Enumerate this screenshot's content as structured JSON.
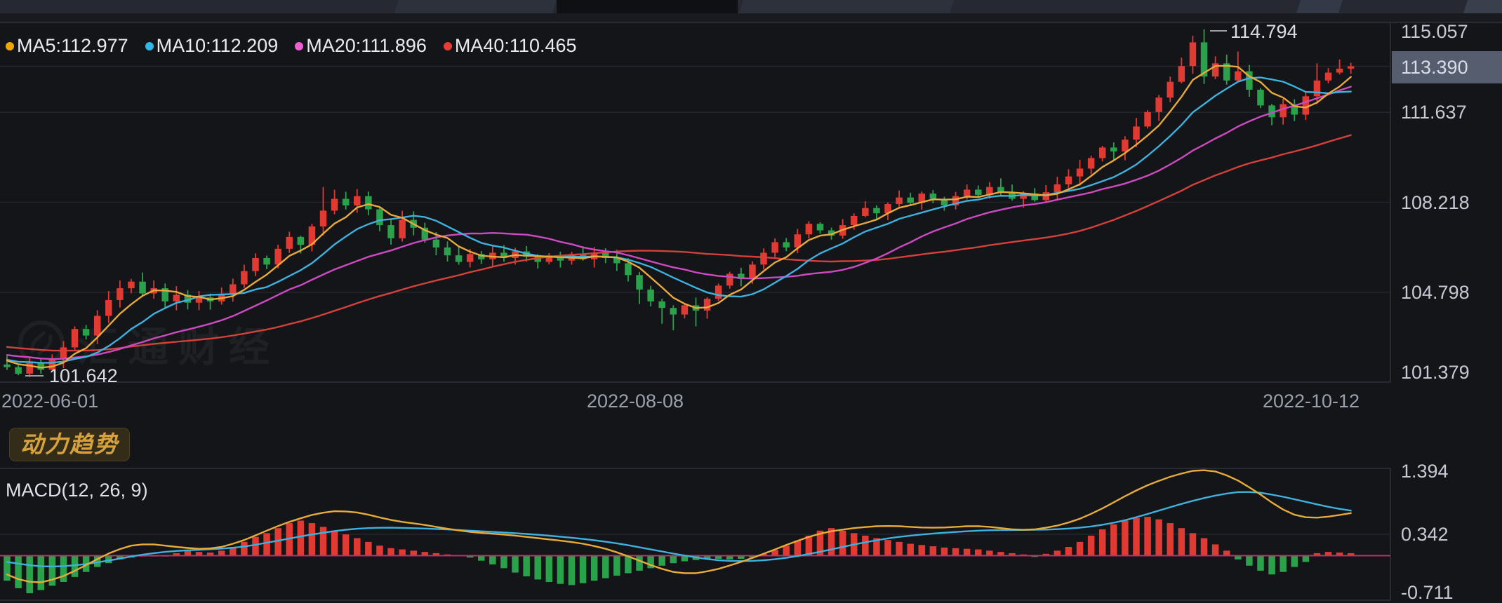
{
  "colors": {
    "background": "#141519",
    "up_candle": "#e03a33",
    "down_candle": "#2aa24b",
    "ma5": "#e7a93b",
    "ma10": "#3eb1de",
    "ma20": "#cd4ac2",
    "ma40": "#d4403a",
    "macd_dif": "#e7ab3a",
    "macd_dea": "#3eb1de",
    "macd_zero_line": "#b5366a",
    "grid": "#23252d",
    "border": "#30333d",
    "tag_background": "#565d6e",
    "badge_text": "#d7a23b",
    "legend_dot_ma5": "#f0a500",
    "legend_dot_ma10": "#2eb8e8",
    "legend_dot_ma20": "#ef5fd2",
    "legend_dot_ma40": "#e83b35"
  },
  "main_chart": {
    "legend": [
      {
        "label": "MA5:112.977",
        "color": "#f0a500"
      },
      {
        "label": "MA10:112.209",
        "color": "#2eb8e8"
      },
      {
        "label": "MA20:111.896",
        "color": "#ef5fd2"
      },
      {
        "label": "MA40:110.465",
        "color": "#e83b35"
      }
    ],
    "current_price_label": "113.390",
    "high_annotation": "114.794",
    "low_annotation": "101.642",
    "x_axis_labels": [
      "2022-06-01",
      "2022-08-08",
      "2022-10-12"
    ]
  },
  "badge": {
    "label": "动力趋势"
  },
  "watermark": {
    "text": "汇通财经"
  },
  "macd_panel": {
    "label": "MACD(12, 26, 9)",
    "y_axis_labels": [
      "1.394",
      "0.342",
      "-0.711"
    ]
  },
  "chart_data": {
    "type": "candlestick+macd",
    "x_dates": {
      "start": "2022-06-01",
      "middle": "2022-08-08",
      "end": "2022-10-12"
    },
    "price_axis": {
      "ticks": [
        115.057,
        113.39,
        111.637,
        108.218,
        104.798,
        101.379
      ],
      "current_price": 113.39,
      "period_high": 114.794,
      "period_low": 101.642
    },
    "ma_legend_values": {
      "MA5": 112.977,
      "MA10": 112.209,
      "MA20": 111.896,
      "MA40": 110.465
    },
    "macd_axis": {
      "ticks": [
        1.394,
        0.342,
        -0.711
      ],
      "params": [
        12,
        26,
        9
      ]
    },
    "closes": [
      101.95,
      101.7,
      102.1,
      101.85,
      102.25,
      102.7,
      103.4,
      103.15,
      103.9,
      104.5,
      104.95,
      105.2,
      104.75,
      104.95,
      104.45,
      104.7,
      104.4,
      104.6,
      104.45,
      104.7,
      105.1,
      105.6,
      106.1,
      105.85,
      106.45,
      106.9,
      106.6,
      107.3,
      107.9,
      108.35,
      108.1,
      108.45,
      107.95,
      107.35,
      106.85,
      107.55,
      107.25,
      106.8,
      106.5,
      106.2,
      105.95,
      106.25,
      106.05,
      106.3,
      106.1,
      106.35,
      106.15,
      105.95,
      106.2,
      106.0,
      106.25,
      106.05,
      106.3,
      106.1,
      105.9,
      105.45,
      104.9,
      104.45,
      104.2,
      103.95,
      104.3,
      104.1,
      104.55,
      105.05,
      105.5,
      105.3,
      105.85,
      106.3,
      106.7,
      106.5,
      107.0,
      107.4,
      107.15,
      106.95,
      107.35,
      107.7,
      108.0,
      107.8,
      108.15,
      108.4,
      108.2,
      108.55,
      108.35,
      108.1,
      108.45,
      108.7,
      108.5,
      108.8,
      108.6,
      108.35,
      108.55,
      108.3,
      108.6,
      108.9,
      109.2,
      109.5,
      109.9,
      110.3,
      110.15,
      110.6,
      111.1,
      111.65,
      112.2,
      112.8,
      113.4,
      114.3,
      113.0,
      113.5,
      112.85,
      113.2,
      112.5,
      111.9,
      111.45,
      111.95,
      111.55,
      112.25,
      112.85,
      113.15,
      113.3,
      113.39
    ],
    "first_open": 102.05,
    "high_overrides": {
      "28": 108.8,
      "31": 108.72,
      "105": 114.55,
      "106": 114.794,
      "109": 113.95,
      "116": 113.5
    },
    "low_overrides": {
      "1": 101.642,
      "3": 101.7,
      "56": 104.35,
      "58": 103.6,
      "59": 103.35,
      "61": 103.5,
      "112": 111.15
    },
    "macd_hist": [
      -0.4,
      -0.52,
      -0.6,
      -0.55,
      -0.48,
      -0.42,
      -0.34,
      -0.26,
      -0.18,
      -0.12,
      -0.06,
      -0.03,
      0.0,
      0.0,
      0.0,
      0.04,
      0.08,
      0.06,
      0.05,
      0.08,
      0.14,
      0.22,
      0.3,
      0.36,
      0.44,
      0.52,
      0.56,
      0.52,
      0.46,
      0.4,
      0.34,
      0.28,
      0.22,
      0.16,
      0.12,
      0.1,
      0.08,
      0.06,
      0.04,
      0.02,
      0.01,
      -0.03,
      -0.08,
      -0.14,
      -0.2,
      -0.27,
      -0.33,
      -0.38,
      -0.42,
      -0.45,
      -0.47,
      -0.44,
      -0.4,
      -0.36,
      -0.32,
      -0.28,
      -0.24,
      -0.2,
      -0.16,
      -0.12,
      -0.09,
      -0.07,
      -0.06,
      -0.05,
      -0.06,
      -0.05,
      -0.03,
      0.03,
      0.09,
      0.16,
      0.24,
      0.32,
      0.4,
      0.44,
      0.4,
      0.36,
      0.32,
      0.28,
      0.25,
      0.22,
      0.19,
      0.17,
      0.15,
      0.13,
      0.12,
      0.11,
      0.1,
      0.08,
      0.06,
      0.04,
      0.02,
      -0.02,
      0.03,
      0.08,
      0.14,
      0.22,
      0.32,
      0.42,
      0.5,
      0.56,
      0.6,
      0.62,
      0.58,
      0.52,
      0.44,
      0.36,
      0.28,
      0.18,
      0.08,
      -0.06,
      -0.16,
      -0.24,
      -0.3,
      -0.26,
      -0.18,
      -0.1,
      0.04,
      0.06,
      0.05,
      0.04
    ],
    "macd_dif_points": [
      [
        0,
        -0.3
      ],
      [
        2,
        -0.45
      ],
      [
        4,
        -0.4
      ],
      [
        6,
        -0.25
      ],
      [
        8,
        -0.05
      ],
      [
        10,
        0.12
      ],
      [
        12,
        0.2
      ],
      [
        14,
        0.16
      ],
      [
        16,
        0.12
      ],
      [
        18,
        0.1
      ],
      [
        20,
        0.18
      ],
      [
        22,
        0.32
      ],
      [
        24,
        0.48
      ],
      [
        26,
        0.6
      ],
      [
        28,
        0.7
      ],
      [
        30,
        0.72
      ],
      [
        32,
        0.66
      ],
      [
        34,
        0.56
      ],
      [
        36,
        0.52
      ],
      [
        38,
        0.46
      ],
      [
        40,
        0.4
      ],
      [
        42,
        0.36
      ],
      [
        44,
        0.34
      ],
      [
        46,
        0.3
      ],
      [
        48,
        0.26
      ],
      [
        50,
        0.22
      ],
      [
        52,
        0.16
      ],
      [
        54,
        0.06
      ],
      [
        56,
        -0.08
      ],
      [
        58,
        -0.22
      ],
      [
        60,
        -0.3
      ],
      [
        62,
        -0.26
      ],
      [
        64,
        -0.16
      ],
      [
        66,
        -0.04
      ],
      [
        68,
        0.1
      ],
      [
        70,
        0.24
      ],
      [
        72,
        0.36
      ],
      [
        74,
        0.42
      ],
      [
        76,
        0.46
      ],
      [
        78,
        0.48
      ],
      [
        80,
        0.46
      ],
      [
        82,
        0.44
      ],
      [
        84,
        0.46
      ],
      [
        86,
        0.48
      ],
      [
        88,
        0.44
      ],
      [
        90,
        0.4
      ],
      [
        92,
        0.44
      ],
      [
        94,
        0.52
      ],
      [
        96,
        0.66
      ],
      [
        98,
        0.85
      ],
      [
        100,
        1.05
      ],
      [
        102,
        1.2
      ],
      [
        104,
        1.32
      ],
      [
        106,
        1.39
      ],
      [
        108,
        1.3
      ],
      [
        110,
        1.1
      ],
      [
        112,
        0.85
      ],
      [
        113,
        0.72
      ],
      [
        114,
        0.64
      ],
      [
        115,
        0.6
      ],
      [
        116,
        0.6
      ],
      [
        117,
        0.62
      ],
      [
        118,
        0.65
      ],
      [
        119,
        0.68
      ]
    ],
    "macd_dea_points": [
      [
        0,
        -0.1
      ],
      [
        3,
        -0.18
      ],
      [
        6,
        -0.16
      ],
      [
        9,
        -0.08
      ],
      [
        12,
        0.02
      ],
      [
        15,
        0.08
      ],
      [
        18,
        0.1
      ],
      [
        21,
        0.14
      ],
      [
        24,
        0.24
      ],
      [
        27,
        0.34
      ],
      [
        30,
        0.42
      ],
      [
        33,
        0.45
      ],
      [
        36,
        0.44
      ],
      [
        39,
        0.42
      ],
      [
        42,
        0.39
      ],
      [
        45,
        0.36
      ],
      [
        48,
        0.32
      ],
      [
        51,
        0.27
      ],
      [
        54,
        0.2
      ],
      [
        57,
        0.1
      ],
      [
        60,
        0.0
      ],
      [
        63,
        -0.08
      ],
      [
        66,
        -0.09
      ],
      [
        69,
        -0.04
      ],
      [
        72,
        0.06
      ],
      [
        75,
        0.18
      ],
      [
        78,
        0.28
      ],
      [
        81,
        0.34
      ],
      [
        84,
        0.38
      ],
      [
        87,
        0.41
      ],
      [
        90,
        0.41
      ],
      [
        93,
        0.42
      ],
      [
        96,
        0.46
      ],
      [
        99,
        0.56
      ],
      [
        102,
        0.72
      ],
      [
        105,
        0.88
      ],
      [
        108,
        1.0
      ],
      [
        110,
        1.03
      ],
      [
        112,
        0.98
      ],
      [
        114,
        0.9
      ],
      [
        116,
        0.82
      ],
      [
        118,
        0.74
      ],
      [
        119,
        0.72
      ]
    ]
  }
}
